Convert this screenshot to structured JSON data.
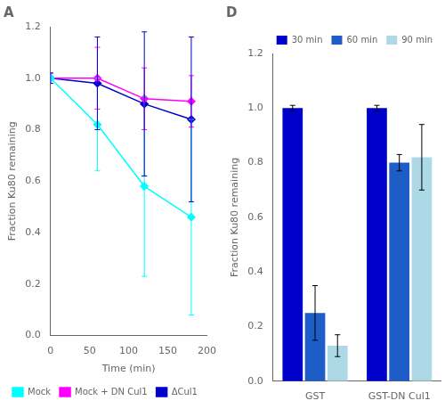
{
  "chart_data": [
    {
      "type": "line",
      "title": "A",
      "x_label": "Time (min)",
      "y_label": "Fraction Ku80 remaining",
      "x": [
        0,
        60,
        120,
        180
      ],
      "series": [
        {
          "name": "Mock",
          "color": "#00FFFF",
          "marker": "diamond",
          "values": [
            1.0,
            0.82,
            0.58,
            0.46
          ],
          "errors": [
            0.02,
            0.18,
            0.35,
            0.38
          ]
        },
        {
          "name": "Mock + DN Cul1",
          "color": "#FF00FF",
          "marker": "diamond",
          "values": [
            1.0,
            1.0,
            0.92,
            0.91
          ],
          "errors": [
            0.02,
            0.12,
            0.12,
            0.1
          ]
        },
        {
          "name": "ΔCul1",
          "color": "#0000CC",
          "marker": "diamond",
          "values": [
            1.0,
            0.98,
            0.9,
            0.84
          ],
          "errors": [
            0.02,
            0.18,
            0.28,
            0.32
          ]
        }
      ],
      "xlim": [
        0,
        200
      ],
      "xticks": [
        0,
        50,
        100,
        150,
        200
      ],
      "ylim": [
        0,
        1.2
      ],
      "yticks": [
        {
          "value": 0,
          "label": "0.0"
        },
        0.2,
        0.4,
        0.6,
        0.8,
        {
          "value": 1.0,
          "label": "1.0"
        },
        1.2
      ],
      "grid": false,
      "legend": "lower left"
    },
    {
      "type": "bar",
      "title": "D",
      "y_label": "Fraction Ku80 remaining",
      "categories": [
        "GST",
        "GST-DN Cul1"
      ],
      "series": [
        {
          "name": "30 min",
          "color": "#0000CD",
          "values": [
            1.0,
            1.0
          ],
          "errors": [
            0.01,
            0.01
          ]
        },
        {
          "name": "60 min",
          "color": "#1E5DC8",
          "values": [
            0.25,
            0.8
          ],
          "errors": [
            0.1,
            0.03
          ]
        },
        {
          "name": "90 min",
          "color": "#ADD8E6",
          "values": [
            0.13,
            0.82
          ],
          "errors": [
            0.04,
            0.12
          ]
        }
      ],
      "ylim": [
        0,
        1.2
      ],
      "yticks": [
        {
          "value": 0,
          "label": "0.0"
        },
        0.2,
        0.4,
        0.6,
        0.8,
        {
          "value": 1.0,
          "label": "1.0"
        },
        1.2
      ],
      "grid": false,
      "legend": "upper right"
    }
  ]
}
